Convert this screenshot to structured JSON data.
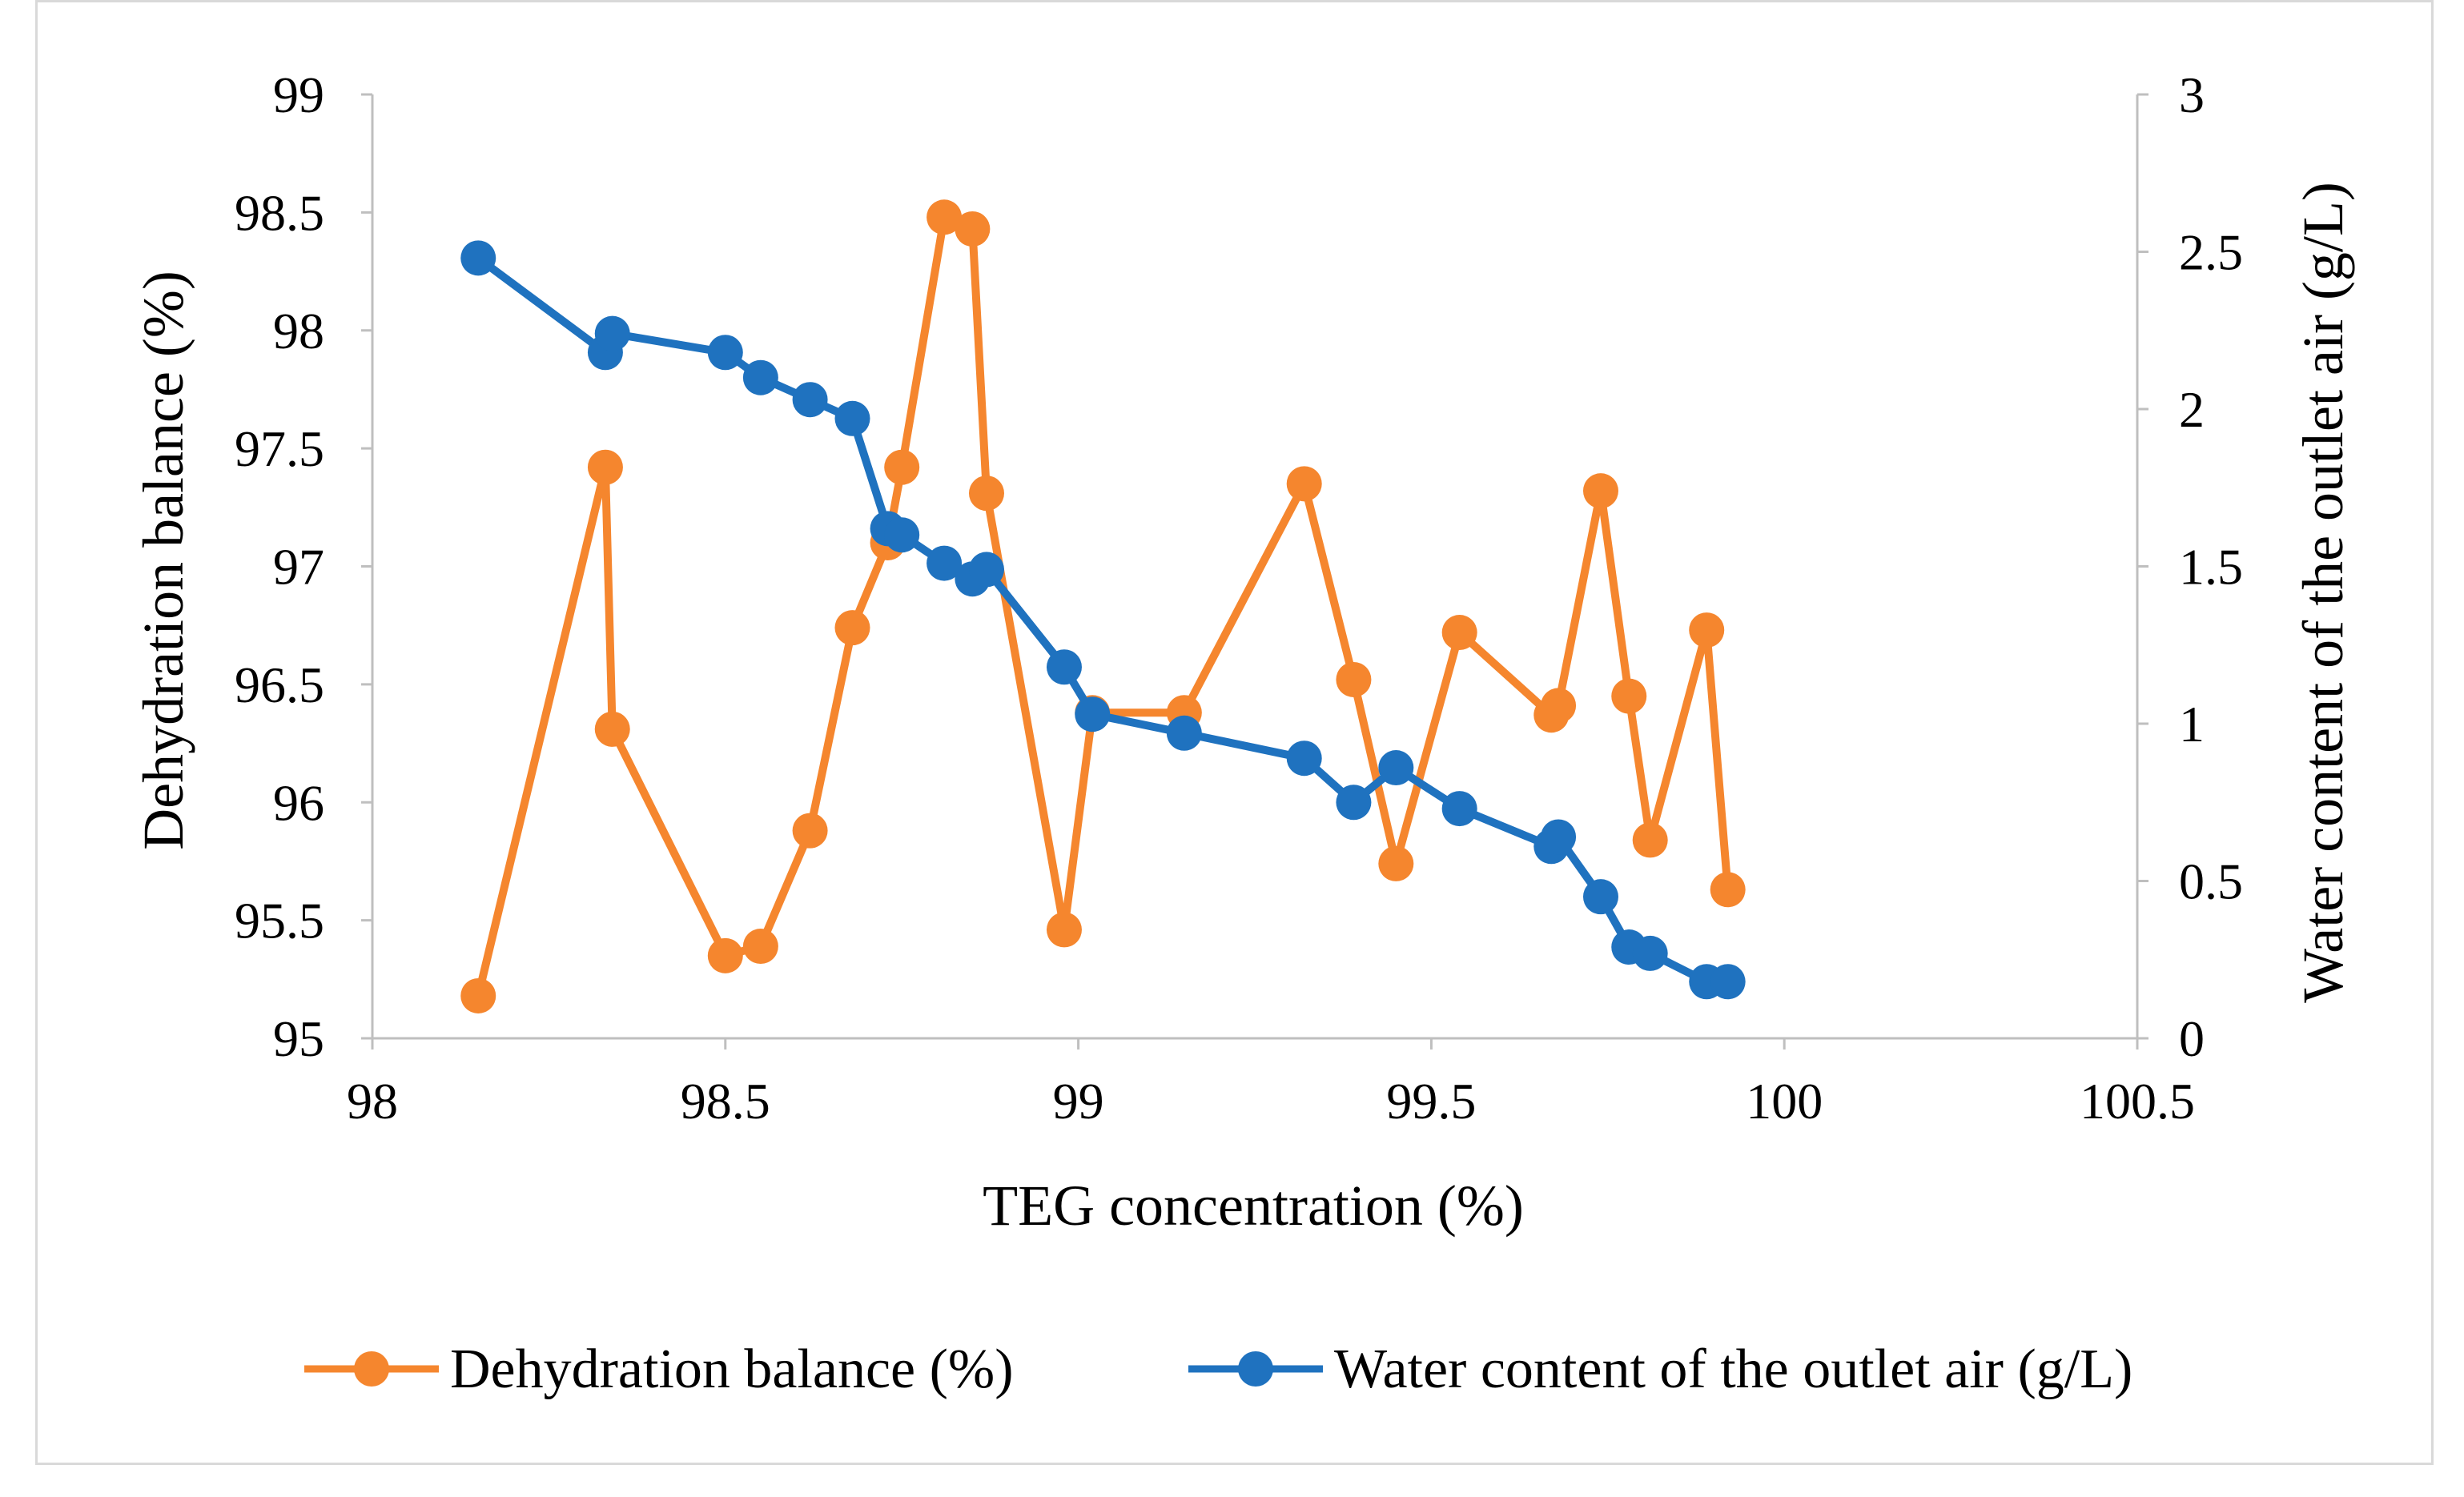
{
  "chart_data": {
    "type": "line",
    "title": "",
    "xlabel": "TEG concentration (%)",
    "ylabel_left": "Dehydration balance (%)",
    "ylabel_right": "Water content of the outlet air (g/L)",
    "xlim": [
      98,
      100.5
    ],
    "ylim_left": [
      95,
      99
    ],
    "ylim_right": [
      0,
      3
    ],
    "x_ticks": [
      "98",
      "98.5",
      "99",
      "99.5",
      "100",
      "100.5"
    ],
    "y_left_ticks": [
      "95",
      "95.5",
      "96",
      "96.5",
      "97",
      "97.5",
      "98",
      "98.5",
      "99"
    ],
    "y_right_ticks": [
      "0",
      "0.5",
      "1",
      "1.5",
      "2",
      "2.5",
      "3"
    ],
    "grid": false,
    "legend_position": "bottom",
    "series": [
      {
        "name": "Dehydration balance (%)",
        "axis": "left",
        "color": "#f5862e",
        "points": [
          [
            98.15,
            95.18
          ],
          [
            98.33,
            97.42
          ],
          [
            98.34,
            96.31
          ],
          [
            98.5,
            95.35
          ],
          [
            98.55,
            95.39
          ],
          [
            98.62,
            95.88
          ],
          [
            98.68,
            96.74
          ],
          [
            98.73,
            97.1
          ],
          [
            98.75,
            97.42
          ],
          [
            98.81,
            98.48
          ],
          [
            98.85,
            98.43
          ],
          [
            98.87,
            97.31
          ],
          [
            98.98,
            95.46
          ],
          [
            99.02,
            96.38
          ],
          [
            99.15,
            96.38
          ],
          [
            99.32,
            97.35
          ],
          [
            99.39,
            96.52
          ],
          [
            99.45,
            95.74
          ],
          [
            99.54,
            96.72
          ],
          [
            99.67,
            96.37
          ],
          [
            99.68,
            96.41
          ],
          [
            99.74,
            97.32
          ],
          [
            99.78,
            96.45
          ],
          [
            99.81,
            95.84
          ],
          [
            99.89,
            96.73
          ],
          [
            99.92,
            95.63
          ]
        ]
      },
      {
        "name": "Water content of the outlet air (g/L)",
        "axis": "right",
        "color": "#1f72bf",
        "points": [
          [
            98.15,
            2.48
          ],
          [
            98.33,
            2.18
          ],
          [
            98.34,
            2.24
          ],
          [
            98.5,
            2.18
          ],
          [
            98.55,
            2.1
          ],
          [
            98.62,
            2.03
          ],
          [
            98.68,
            1.97
          ],
          [
            98.73,
            1.62
          ],
          [
            98.75,
            1.6
          ],
          [
            98.81,
            1.51
          ],
          [
            98.85,
            1.46
          ],
          [
            98.87,
            1.49
          ],
          [
            98.98,
            1.18
          ],
          [
            99.02,
            1.03
          ],
          [
            99.15,
            0.97
          ],
          [
            99.32,
            0.89
          ],
          [
            99.39,
            0.75
          ],
          [
            99.45,
            0.86
          ],
          [
            99.54,
            0.73
          ],
          [
            99.67,
            0.61
          ],
          [
            99.68,
            0.64
          ],
          [
            99.74,
            0.45
          ],
          [
            99.78,
            0.29
          ],
          [
            99.81,
            0.27
          ],
          [
            99.89,
            0.18
          ],
          [
            99.92,
            0.18
          ]
        ]
      }
    ]
  }
}
